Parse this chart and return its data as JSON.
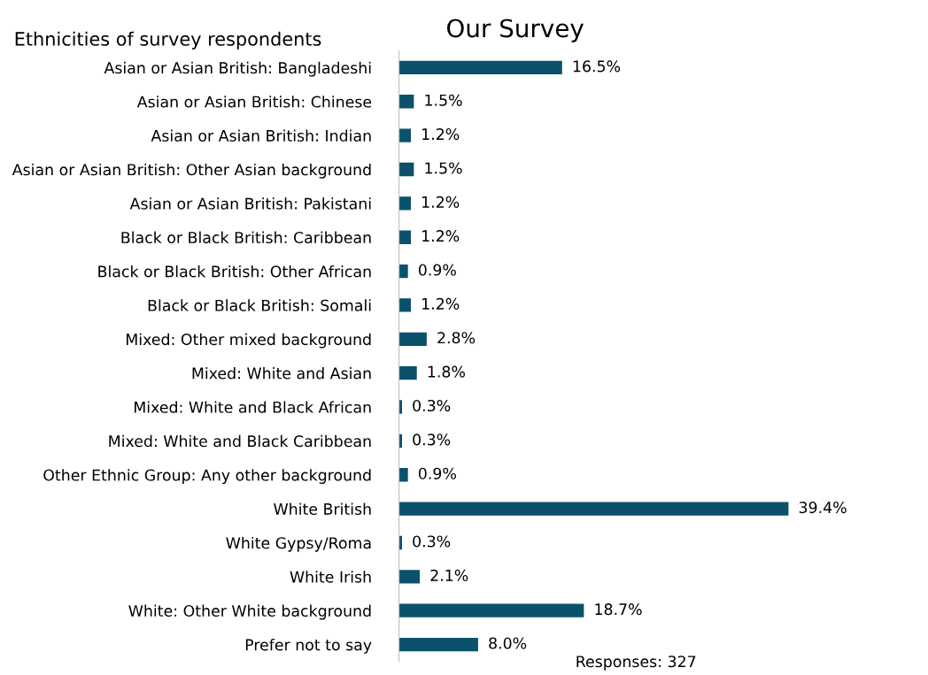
{
  "chart_data": {
    "type": "bar",
    "orientation": "horizontal",
    "title": "Our Survey",
    "subtitle": "Ethnicities of survey respondents",
    "categories": [
      "Asian or Asian British: Bangladeshi",
      "Asian or Asian British: Chinese",
      "Asian or Asian British: Indian",
      "Asian or Asian British: Other Asian background",
      "Asian or Asian British: Pakistani",
      "Black or Black British: Caribbean",
      "Black or Black British: Other African",
      "Black or Black British: Somali",
      "Mixed: Other mixed background",
      "Mixed: White and Asian",
      "Mixed: White and Black African",
      "Mixed: White and Black Caribbean",
      "Other Ethnic Group: Any other background",
      "White British",
      "White Gypsy/Roma",
      "White Irish",
      "White: Other White background",
      "Prefer not to say"
    ],
    "values": [
      16.5,
      1.5,
      1.2,
      1.5,
      1.2,
      1.2,
      0.9,
      1.2,
      2.8,
      1.8,
      0.3,
      0.3,
      0.9,
      39.4,
      0.3,
      2.1,
      18.7,
      8.0
    ],
    "value_labels": [
      "16.5%",
      "1.5%",
      "1.2%",
      "1.5%",
      "1.2%",
      "1.2%",
      "0.9%",
      "1.2%",
      "2.8%",
      "1.8%",
      "0.3%",
      "0.3%",
      "0.9%",
      "39.4%",
      "0.3%",
      "2.1%",
      "18.7%",
      "8.0%"
    ],
    "color": "#0b516c",
    "grid": false,
    "legend": false,
    "annotations": [
      "Responses: 327"
    ]
  }
}
